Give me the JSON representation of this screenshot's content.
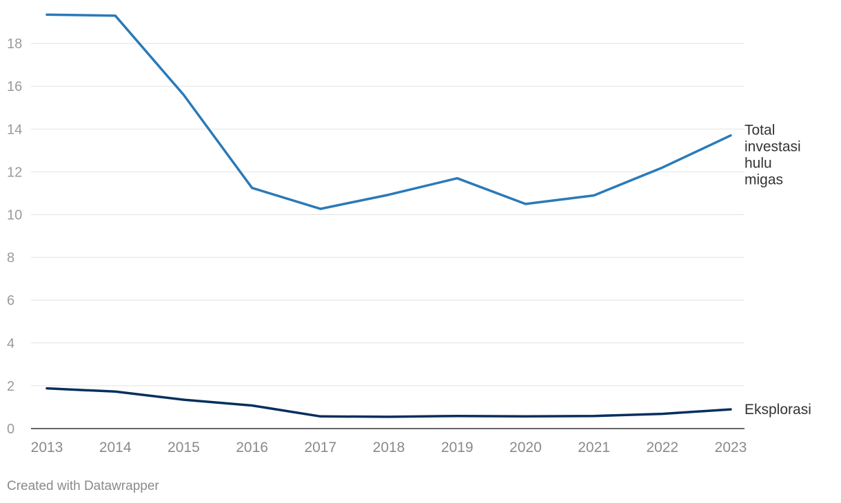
{
  "chart_data": {
    "type": "line",
    "x": [
      "2013",
      "2014",
      "2015",
      "2016",
      "2017",
      "2018",
      "2019",
      "2020",
      "2021",
      "2022",
      "2023"
    ],
    "series": [
      {
        "name": "Total investasi hulu migas",
        "label_lines": [
          "Total",
          "investasi",
          "hulu",
          "migas"
        ],
        "color": "#2a7ab8",
        "values": [
          19.35,
          19.3,
          15.6,
          11.25,
          10.27,
          10.93,
          11.7,
          10.5,
          10.9,
          12.2,
          13.7
        ]
      },
      {
        "name": "Eksplorasi",
        "label_lines": [
          "Eksplorasi"
        ],
        "color": "#052f5e",
        "values": [
          1.88,
          1.73,
          1.35,
          1.08,
          0.57,
          0.55,
          0.59,
          0.57,
          0.59,
          0.69,
          0.9
        ]
      }
    ],
    "yticks": [
      0,
      2,
      4,
      6,
      8,
      10,
      12,
      14,
      16,
      18
    ],
    "ylim": [
      0,
      19.5
    ],
    "grid": true,
    "title": "",
    "xlabel": "",
    "ylabel": ""
  },
  "footer": {
    "credit": "Created with Datawrapper"
  }
}
